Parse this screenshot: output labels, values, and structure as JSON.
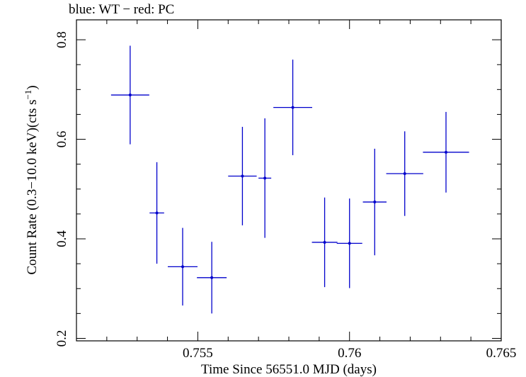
{
  "chart_data": {
    "type": "scatter",
    "title": "blue: WT − red: PC",
    "xlabel": "Time Since 56551.0 MJD (days)",
    "ylabel_main": "Count Rate (0.3−10.0 keV)(cts s",
    "ylabel_sup": "−1",
    "ylabel_close": ")",
    "xlim": [
      0.751,
      0.765
    ],
    "ylim": [
      0.195,
      0.84
    ],
    "x_ticks": [
      {
        "value": 0.755,
        "label": "0.755"
      },
      {
        "value": 0.76,
        "label": "0.76"
      },
      {
        "value": 0.765,
        "label": "0.765"
      }
    ],
    "y_ticks": [
      {
        "value": 0.2,
        "label": "0.2"
      },
      {
        "value": 0.4,
        "label": "0.4"
      },
      {
        "value": 0.6,
        "label": "0.6"
      },
      {
        "value": 0.8,
        "label": "0.8"
      }
    ],
    "x_minor_step": 0.001,
    "y_minor_step": 0.05,
    "series": [
      {
        "color": "#0000cc",
        "points": [
          {
            "x": 0.75277,
            "xerr": 0.00063,
            "y": 0.689,
            "yerr": 0.099
          },
          {
            "x": 0.75365,
            "xerr": 0.00024,
            "y": 0.452,
            "yerr": 0.102
          },
          {
            "x": 0.7545,
            "xerr": 0.00049,
            "y": 0.344,
            "yerr": 0.078
          },
          {
            "x": 0.75546,
            "xerr": 0.00049,
            "y": 0.322,
            "yerr": 0.072
          },
          {
            "x": 0.75647,
            "xerr": 0.00047,
            "y": 0.526,
            "yerr": 0.099
          },
          {
            "x": 0.75721,
            "xerr": 0.00021,
            "y": 0.522,
            "yerr": 0.12
          },
          {
            "x": 0.75813,
            "xerr": 0.00064,
            "y": 0.664,
            "yerr": 0.096
          },
          {
            "x": 0.75918,
            "xerr": 0.00042,
            "y": 0.393,
            "yerr": 0.09
          },
          {
            "x": 0.76,
            "xerr": 0.00042,
            "y": 0.391,
            "yerr": 0.09
          },
          {
            "x": 0.76083,
            "xerr": 0.00039,
            "y": 0.474,
            "yerr": 0.107
          },
          {
            "x": 0.76182,
            "xerr": 0.00061,
            "y": 0.531,
            "yerr": 0.085
          },
          {
            "x": 0.76318,
            "xerr": 0.00076,
            "y": 0.574,
            "yerr": 0.081
          }
        ]
      }
    ]
  }
}
